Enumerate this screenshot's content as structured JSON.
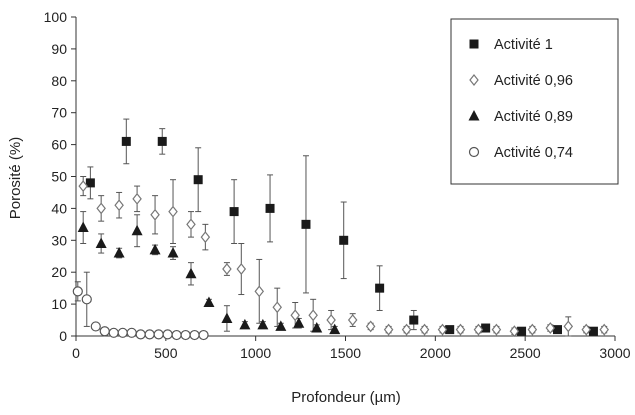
{
  "chart_data": {
    "type": "scatter",
    "title": "",
    "xlabel": "Profondeur (µm)",
    "ylabel": "Porosité (%)",
    "xlim": [
      0,
      3000
    ],
    "ylim": [
      0,
      100
    ],
    "x_ticks": [
      0,
      500,
      1000,
      1500,
      2000,
      2500,
      3000
    ],
    "y_ticks": [
      0,
      10,
      20,
      30,
      40,
      50,
      60,
      70,
      80,
      90,
      100
    ],
    "grid": false,
    "legend_position": "top-right",
    "series": [
      {
        "name": "Activité 1",
        "marker": "square",
        "color": "#1a1a1a",
        "points": [
          {
            "x": 80,
            "y": 48,
            "err": 5
          },
          {
            "x": 280,
            "y": 61,
            "err": 7
          },
          {
            "x": 480,
            "y": 61,
            "err": 4
          },
          {
            "x": 680,
            "y": 49,
            "err": 10
          },
          {
            "x": 880,
            "y": 39,
            "err": 10
          },
          {
            "x": 1080,
            "y": 40,
            "err": 10.5
          },
          {
            "x": 1280,
            "y": 35,
            "err": 21.5
          },
          {
            "x": 1490,
            "y": 30,
            "err": 12
          },
          {
            "x": 1690,
            "y": 15,
            "err": 7
          },
          {
            "x": 1880,
            "y": 5,
            "err": 3
          },
          {
            "x": 2080,
            "y": 2,
            "err": 1
          },
          {
            "x": 2280,
            "y": 2.5,
            "err": 1
          },
          {
            "x": 2480,
            "y": 1.5,
            "err": 1
          },
          {
            "x": 2680,
            "y": 2,
            "err": 1
          },
          {
            "x": 2880,
            "y": 1.5,
            "err": 1
          }
        ]
      },
      {
        "name": "Activité 0,96",
        "marker": "diamond",
        "color": "#777777",
        "points": [
          {
            "x": 40,
            "y": 47,
            "err": 3
          },
          {
            "x": 140,
            "y": 40,
            "err": 4
          },
          {
            "x": 240,
            "y": 41,
            "err": 4
          },
          {
            "x": 340,
            "y": 43,
            "err": 4
          },
          {
            "x": 440,
            "y": 38,
            "err": 6
          },
          {
            "x": 540,
            "y": 39,
            "err": 10
          },
          {
            "x": 640,
            "y": 35,
            "err": 4
          },
          {
            "x": 720,
            "y": 31,
            "err": 4
          },
          {
            "x": 840,
            "y": 21,
            "err": 2
          },
          {
            "x": 920,
            "y": 21,
            "err": 8
          },
          {
            "x": 1020,
            "y": 14,
            "err": 10
          },
          {
            "x": 1120,
            "y": 9,
            "err": 6
          },
          {
            "x": 1220,
            "y": 6.5,
            "err": 4
          },
          {
            "x": 1320,
            "y": 6.5,
            "err": 5
          },
          {
            "x": 1420,
            "y": 5,
            "err": 3
          },
          {
            "x": 1540,
            "y": 5,
            "err": 2
          },
          {
            "x": 1640,
            "y": 3,
            "err": 1
          },
          {
            "x": 1740,
            "y": 2,
            "err": 1
          },
          {
            "x": 1840,
            "y": 2,
            "err": 1
          },
          {
            "x": 1940,
            "y": 2,
            "err": 1
          },
          {
            "x": 2040,
            "y": 2,
            "err": 1
          },
          {
            "x": 2140,
            "y": 2,
            "err": 1
          },
          {
            "x": 2240,
            "y": 2,
            "err": 1
          },
          {
            "x": 2340,
            "y": 2,
            "err": 1
          },
          {
            "x": 2440,
            "y": 1.5,
            "err": 1
          },
          {
            "x": 2540,
            "y": 2,
            "err": 1
          },
          {
            "x": 2640,
            "y": 2.5,
            "err": 1
          },
          {
            "x": 2740,
            "y": 3,
            "err": 3
          },
          {
            "x": 2840,
            "y": 2,
            "err": 1
          },
          {
            "x": 2940,
            "y": 2,
            "err": 1
          }
        ]
      },
      {
        "name": "Activité 0,89",
        "marker": "triangle",
        "color": "#1a1a1a",
        "points": [
          {
            "x": 40,
            "y": 34,
            "err": 5
          },
          {
            "x": 140,
            "y": 29,
            "err": 3
          },
          {
            "x": 240,
            "y": 26,
            "err": 1.5
          },
          {
            "x": 340,
            "y": 33,
            "err": 5
          },
          {
            "x": 440,
            "y": 27,
            "err": 1.5
          },
          {
            "x": 540,
            "y": 26,
            "err": 2
          },
          {
            "x": 640,
            "y": 19.5,
            "err": 3.5
          },
          {
            "x": 740,
            "y": 10.5,
            "err": 1
          },
          {
            "x": 840,
            "y": 5.5,
            "err": 4
          },
          {
            "x": 940,
            "y": 3.5,
            "err": 1
          },
          {
            "x": 1040,
            "y": 3.5,
            "err": 1
          },
          {
            "x": 1140,
            "y": 3,
            "err": 1
          },
          {
            "x": 1240,
            "y": 4,
            "err": 1.5
          },
          {
            "x": 1340,
            "y": 2.5,
            "err": 1
          },
          {
            "x": 1440,
            "y": 2,
            "err": 1
          }
        ]
      },
      {
        "name": "Activité 0,74",
        "marker": "circle",
        "color": "#555555",
        "points": [
          {
            "x": 10,
            "y": 14,
            "err": 3
          },
          {
            "x": 60,
            "y": 11.5,
            "err": 8.5
          },
          {
            "x": 110,
            "y": 3,
            "err": 1
          },
          {
            "x": 160,
            "y": 1.5,
            "err": 0.5
          },
          {
            "x": 210,
            "y": 1,
            "err": 0.5
          },
          {
            "x": 260,
            "y": 1,
            "err": 0.5
          },
          {
            "x": 310,
            "y": 1,
            "err": 0.5
          },
          {
            "x": 360,
            "y": 0.5,
            "err": 0.5
          },
          {
            "x": 410,
            "y": 0.5,
            "err": 0.5
          },
          {
            "x": 460,
            "y": 0.5,
            "err": 0.5
          },
          {
            "x": 510,
            "y": 0.5,
            "err": 0.5
          },
          {
            "x": 560,
            "y": 0.3,
            "err": 0.3
          },
          {
            "x": 610,
            "y": 0.3,
            "err": 0.3
          },
          {
            "x": 660,
            "y": 0.3,
            "err": 0.3
          },
          {
            "x": 710,
            "y": 0.3,
            "err": 0.3
          }
        ]
      }
    ]
  }
}
